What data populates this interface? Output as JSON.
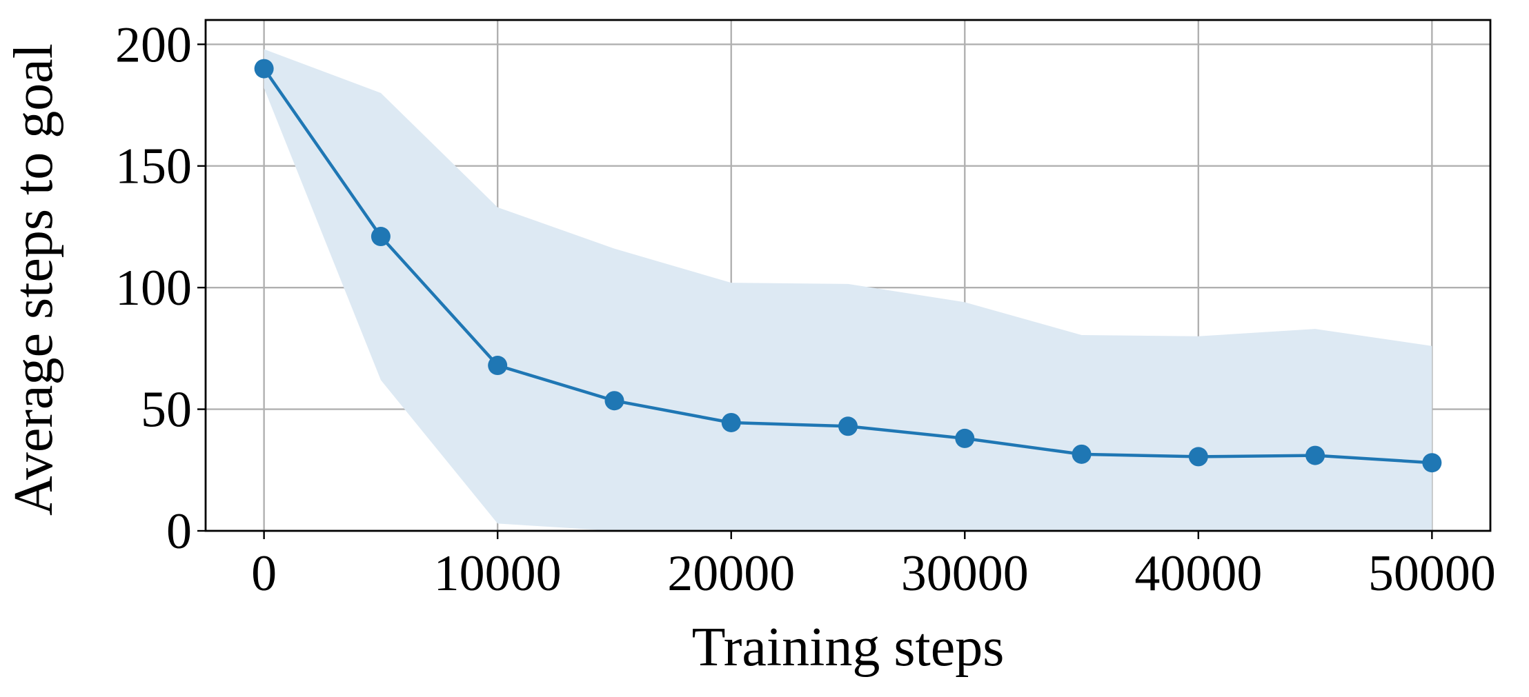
{
  "chart_data": {
    "type": "line",
    "title": "",
    "xlabel": "Training steps",
    "ylabel": "Average steps to goal",
    "xlim": [
      -2500,
      52500
    ],
    "ylim": [
      0,
      210
    ],
    "xticks": [
      0,
      10000,
      20000,
      30000,
      40000,
      50000
    ],
    "yticks": [
      0,
      50,
      100,
      150,
      200
    ],
    "grid": true,
    "series": [
      {
        "x": [
          0,
          5000,
          10000,
          15000,
          20000,
          25000,
          30000,
          35000,
          40000,
          45000,
          50000
        ],
        "y": [
          190,
          121,
          68,
          53.5,
          44.5,
          43,
          38,
          31.5,
          30.5,
          31,
          28
        ],
        "band_upper": [
          198,
          180,
          133,
          116,
          102,
          101.5,
          94,
          80.5,
          80,
          83,
          76
        ],
        "band_lower": [
          182,
          62,
          3,
          0,
          0,
          0,
          0,
          0,
          0,
          0,
          0
        ],
        "color": "#1f77b4",
        "band_color": "#dde9f3"
      }
    ]
  }
}
